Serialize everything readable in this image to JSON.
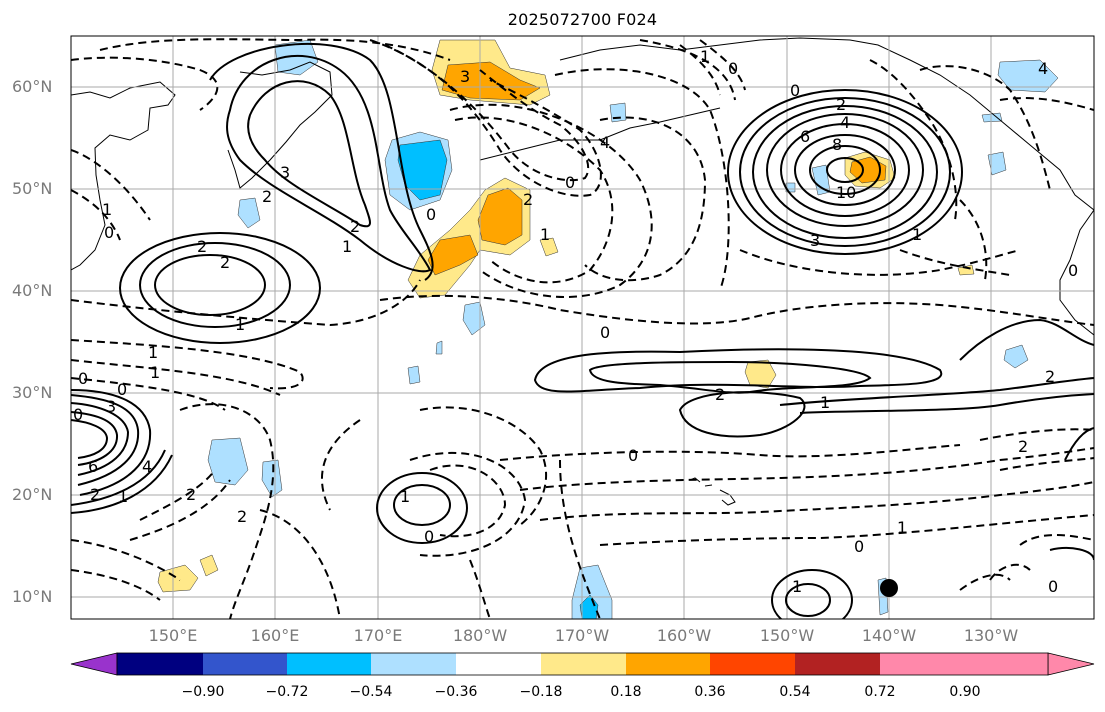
{
  "title": "2025072700 F024",
  "latitude_labels": [
    "60°N",
    "50°N",
    "40°N",
    "30°N",
    "20°N",
    "10°N"
  ],
  "longitude_labels": [
    "150°E",
    "160°E",
    "170°E",
    "180°W",
    "170°W",
    "160°W",
    "150°W",
    "140°W",
    "130°W"
  ],
  "colorbar": {
    "ticks": [
      "−0.90",
      "−0.72",
      "−0.54",
      "−0.36",
      "−0.18",
      "0.18",
      "0.36",
      "0.54",
      "0.72",
      "0.90"
    ],
    "colors": [
      "#9933cc",
      "#000080",
      "#3355cc",
      "#00bfff",
      "#aee0ff",
      "#ffffff",
      "#ffe98a",
      "#ffa500",
      "#ff4500",
      "#b22222",
      "#ff88aa"
    ]
  },
  "contour_labels": [
    "1",
    "0",
    "3",
    "2",
    "4",
    "0",
    "0",
    "3",
    "2",
    "1",
    "2",
    "2",
    "1",
    "1",
    "0",
    "2",
    "4",
    "6",
    "8",
    "10",
    "3",
    "0",
    "1",
    "1",
    "2",
    "0",
    "1",
    "0",
    "1",
    "0",
    "0",
    "3",
    "1",
    "2",
    "2",
    "0",
    "2",
    "4",
    "6",
    "1",
    "2",
    "1",
    "2",
    "2",
    "1",
    "0",
    "1",
    "0",
    "0",
    "4",
    "0"
  ]
}
